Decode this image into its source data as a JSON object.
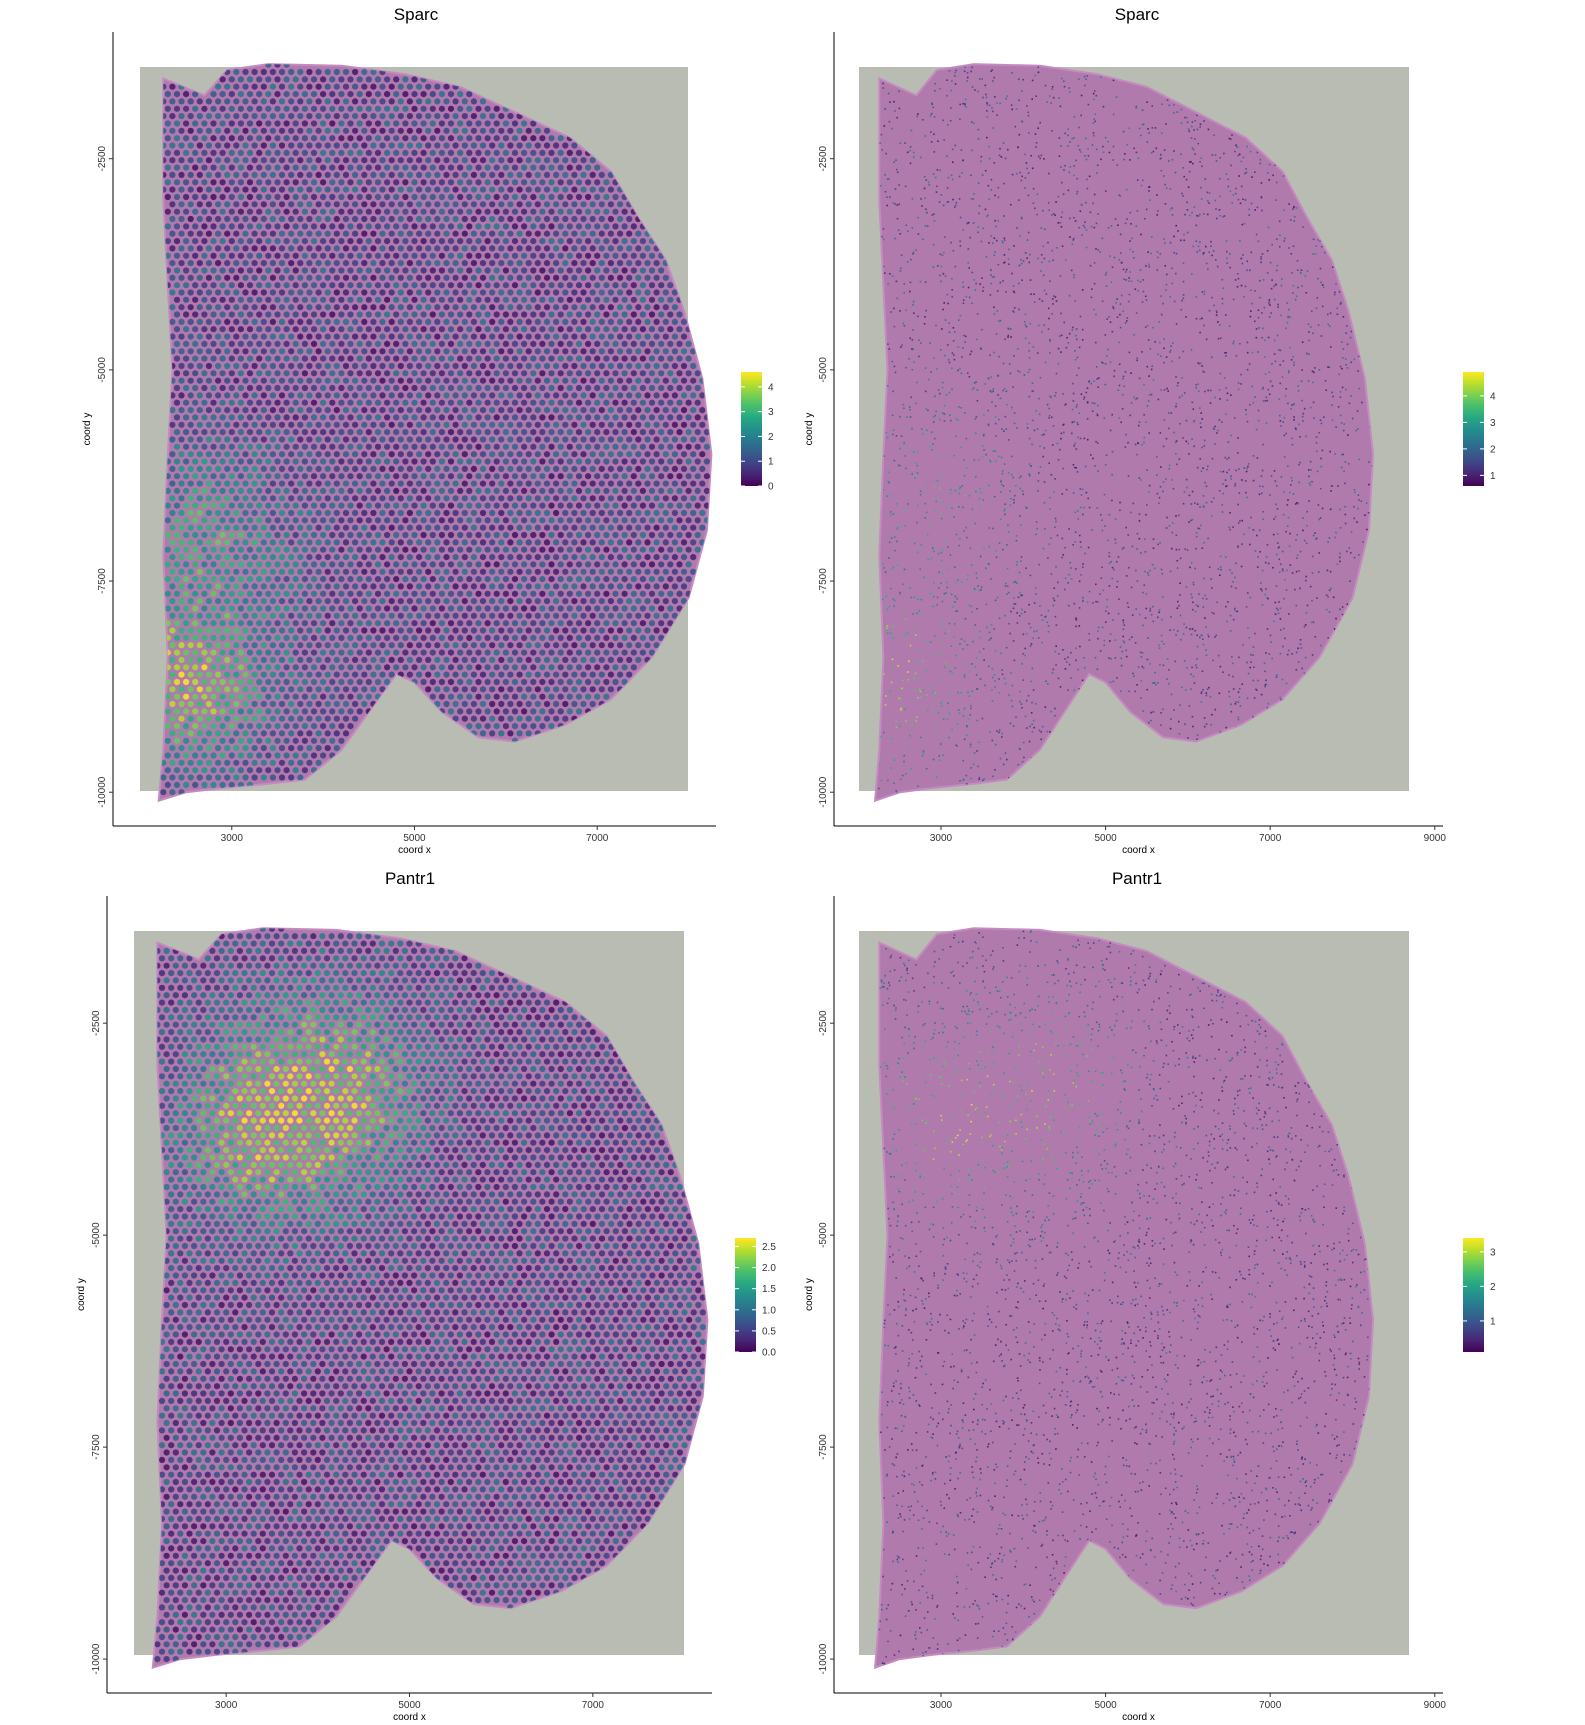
{
  "chart_data": [
    {
      "type": "scatter",
      "title": "Sparc",
      "xlabel": "coord x",
      "ylabel": "coord y",
      "x_ticks": [
        3000,
        5000,
        7000
      ],
      "y_ticks": [
        -2500,
        -5000,
        -7500,
        -10000
      ],
      "xlim": [
        1700,
        8300
      ],
      "ylim": [
        -10400,
        -1000
      ],
      "colorbar": {
        "palette": "viridis",
        "range": [
          0,
          4.6
        ],
        "ticks": [
          "0",
          "1",
          "2",
          "3",
          "4"
        ]
      },
      "point_style": "spots",
      "hotspots": [
        {
          "x": 2500,
          "y": -8600,
          "value": 4.4
        },
        {
          "x": 2700,
          "y": -7000,
          "value": 3.0
        }
      ],
      "background": "H&E tissue image"
    },
    {
      "type": "scatter",
      "title": "Sparc",
      "xlabel": "coord x",
      "ylabel": "coord y",
      "x_ticks": [
        3000,
        5000,
        7000,
        9000
      ],
      "y_ticks": [
        -2500,
        -5000,
        -7500,
        -10000
      ],
      "xlim": [
        1700,
        9100
      ],
      "ylim": [
        -10400,
        -1000
      ],
      "colorbar": {
        "palette": "viridis",
        "range": [
          0.6,
          4.9
        ],
        "ticks": [
          "1",
          "2",
          "3",
          "4"
        ]
      },
      "point_style": "cells",
      "hotspots": [
        {
          "x": 2500,
          "y": -8600,
          "value": 4.6
        },
        {
          "x": 3000,
          "y": -6500,
          "value": 3.3
        }
      ],
      "background": "H&E tissue image"
    },
    {
      "type": "scatter",
      "title": "Pantr1",
      "xlabel": "coord x",
      "ylabel": "coord y",
      "x_ticks": [
        3000,
        5000,
        7000
      ],
      "y_ticks": [
        -2500,
        -5000,
        -7500,
        -10000
      ],
      "xlim": [
        1700,
        8300
      ],
      "ylim": [
        -10400,
        -1000
      ],
      "colorbar": {
        "palette": "viridis",
        "range": [
          0,
          2.7
        ],
        "ticks": [
          "0.0",
          "0.5",
          "1.0",
          "1.5",
          "2.0",
          "2.5"
        ]
      },
      "point_style": "spots",
      "hotspots": [
        {
          "x": 3400,
          "y": -3700,
          "value": 2.6
        },
        {
          "x": 4200,
          "y": -3300,
          "value": 2.5
        }
      ],
      "background": "H&E tissue image"
    },
    {
      "type": "scatter",
      "title": "Pantr1",
      "xlabel": "coord x",
      "ylabel": "coord y",
      "x_ticks": [
        3000,
        5000,
        7000,
        9000
      ],
      "y_ticks": [
        -2500,
        -5000,
        -7500,
        -10000
      ],
      "xlim": [
        1700,
        9100
      ],
      "ylim": [
        -10400,
        -1000
      ],
      "colorbar": {
        "palette": "viridis",
        "range": [
          0.1,
          3.4
        ],
        "ticks": [
          "1",
          "2",
          "3"
        ]
      },
      "point_style": "cells",
      "hotspots": [
        {
          "x": 3100,
          "y": -3600,
          "value": 3.2
        },
        {
          "x": 4300,
          "y": -3300,
          "value": 2.9
        }
      ],
      "background": "H&E tissue image"
    }
  ]
}
